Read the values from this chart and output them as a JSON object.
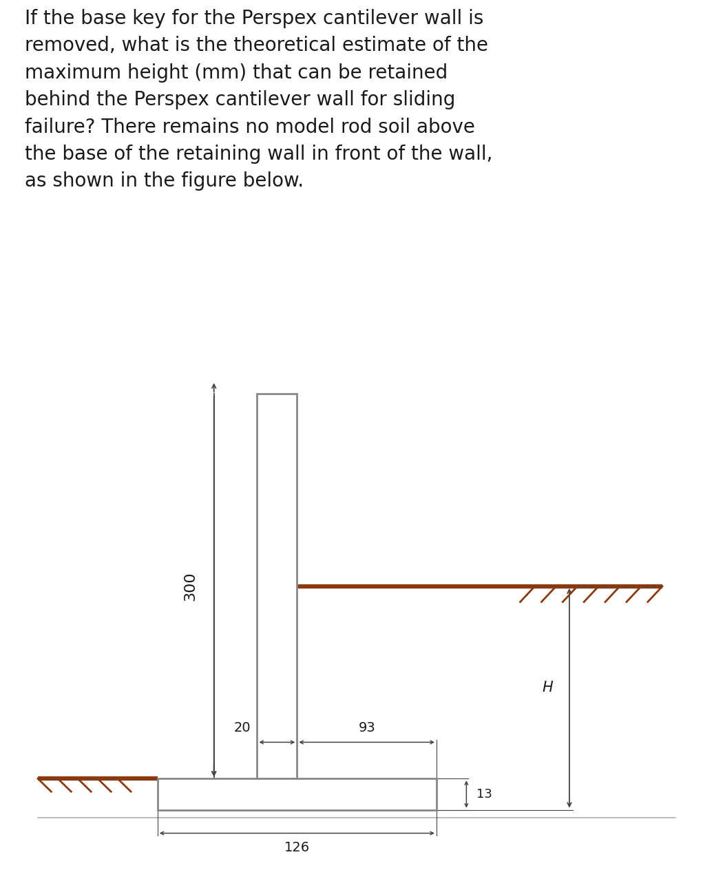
{
  "title_text": "If the base key for the Perspex cantilever wall is\nremoved, what is the theoretical estimate of the\nmaximum height (mm) that can be retained\nbehind the Perspex cantilever wall for sliding\nfailure? There remains no model rod soil above\nthe base of the retaining wall in front of the wall,\nas shown in the figure below.",
  "title_fontsize": 20,
  "background_color": "#ffffff",
  "wall_color": "#888888",
  "soil_line_color": "#8B3A10",
  "dim_color": "#444444",
  "text_color": "#1a1a1a",
  "hatch_color": "#8B3A10",
  "dim_300": "300",
  "dim_20": "20",
  "dim_93": "93",
  "dim_126": "126",
  "dim_13": "13",
  "dim_H": "H"
}
